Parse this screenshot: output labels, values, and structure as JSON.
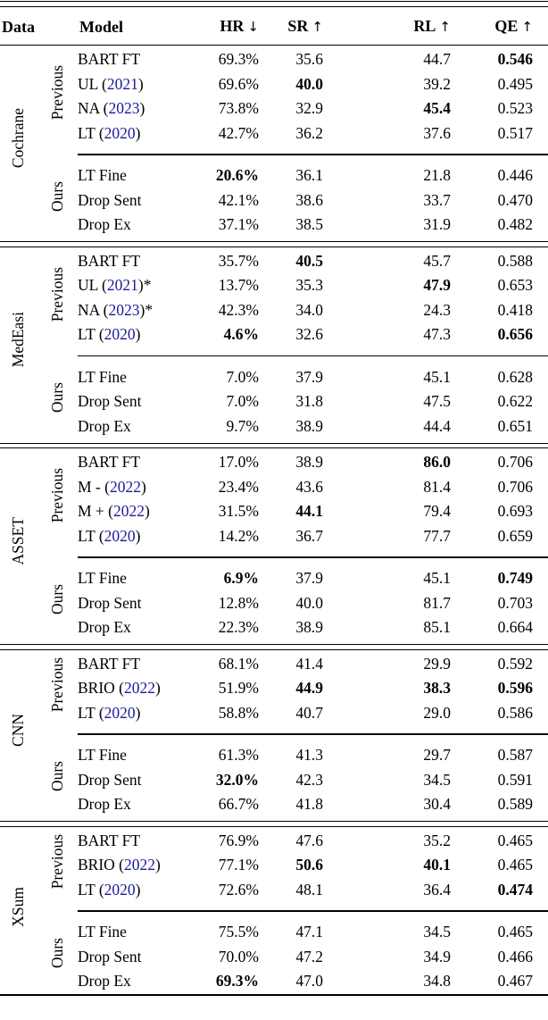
{
  "table": {
    "columns": [
      {
        "label": "Data",
        "arrow": ""
      },
      {
        "label": "Model",
        "arrow": ""
      },
      {
        "label": "HR",
        "arrow": "↓"
      },
      {
        "label": "SR",
        "arrow": "↑"
      },
      {
        "label": "RL",
        "arrow": "↑"
      },
      {
        "label": "QE",
        "arrow": "↑"
      }
    ],
    "year_link_color": "#1b1b9c",
    "blocks": [
      {
        "dataset": "Cochrane",
        "groups": [
          {
            "label": "Previous",
            "rows": [
              {
                "model": {
                  "pre": "BART FT"
                },
                "cells": [
                  {
                    "v": "69.3%"
                  },
                  {
                    "v": "35.6"
                  },
                  {
                    "v": "44.7"
                  },
                  {
                    "v": "0.546",
                    "b": true
                  }
                ]
              },
              {
                "model": {
                  "pre": "UL (",
                  "year": "2021",
                  "post": ")"
                },
                "cells": [
                  {
                    "v": "69.6%"
                  },
                  {
                    "v": "40.0",
                    "b": true
                  },
                  {
                    "v": "39.2"
                  },
                  {
                    "v": "0.495"
                  }
                ]
              },
              {
                "model": {
                  "pre": "NA (",
                  "year": "2023",
                  "post": ")"
                },
                "cells": [
                  {
                    "v": "73.8%"
                  },
                  {
                    "v": "32.9"
                  },
                  {
                    "v": "45.4",
                    "b": true
                  },
                  {
                    "v": "0.523"
                  }
                ]
              },
              {
                "model": {
                  "pre": "LT (",
                  "year": "2020",
                  "post": ")"
                },
                "cells": [
                  {
                    "v": "42.7%"
                  },
                  {
                    "v": "36.2"
                  },
                  {
                    "v": "37.6"
                  },
                  {
                    "v": "0.517"
                  }
                ]
              }
            ]
          },
          {
            "label": "Ours",
            "rows": [
              {
                "model": {
                  "pre": "LT Fine"
                },
                "cells": [
                  {
                    "v": "20.6%",
                    "b": true
                  },
                  {
                    "v": "36.1"
                  },
                  {
                    "v": "21.8"
                  },
                  {
                    "v": "0.446"
                  }
                ]
              },
              {
                "model": {
                  "pre": "Drop Sent"
                },
                "cells": [
                  {
                    "v": "42.1%"
                  },
                  {
                    "v": "38.6"
                  },
                  {
                    "v": "33.7"
                  },
                  {
                    "v": "0.470"
                  }
                ]
              },
              {
                "model": {
                  "pre": "Drop Ex"
                },
                "cells": [
                  {
                    "v": "37.1%"
                  },
                  {
                    "v": "38.5"
                  },
                  {
                    "v": "31.9"
                  },
                  {
                    "v": "0.482"
                  }
                ]
              }
            ]
          }
        ]
      },
      {
        "dataset": "MedEasi",
        "groups": [
          {
            "label": "Previous",
            "rows": [
              {
                "model": {
                  "pre": "BART FT"
                },
                "cells": [
                  {
                    "v": "35.7%"
                  },
                  {
                    "v": "40.5",
                    "b": true
                  },
                  {
                    "v": "45.7"
                  },
                  {
                    "v": "0.588"
                  }
                ]
              },
              {
                "model": {
                  "pre": "UL (",
                  "year": "2021",
                  "post": ")*"
                },
                "cells": [
                  {
                    "v": "13.7%"
                  },
                  {
                    "v": "35.3"
                  },
                  {
                    "v": "47.9",
                    "b": true
                  },
                  {
                    "v": "0.653"
                  }
                ]
              },
              {
                "model": {
                  "pre": "NA (",
                  "year": "2023",
                  "post": ")*"
                },
                "cells": [
                  {
                    "v": "42.3%"
                  },
                  {
                    "v": "34.0"
                  },
                  {
                    "v": "24.3"
                  },
                  {
                    "v": "0.418"
                  }
                ]
              },
              {
                "model": {
                  "pre": "LT (",
                  "year": "2020",
                  "post": ")"
                },
                "cells": [
                  {
                    "v": "4.6%",
                    "b": true
                  },
                  {
                    "v": "32.6"
                  },
                  {
                    "v": "47.3"
                  },
                  {
                    "v": "0.656",
                    "b": true
                  }
                ]
              }
            ]
          },
          {
            "label": "Ours",
            "rows": [
              {
                "model": {
                  "pre": "LT Fine"
                },
                "cells": [
                  {
                    "v": "7.0%"
                  },
                  {
                    "v": "37.9"
                  },
                  {
                    "v": "45.1"
                  },
                  {
                    "v": "0.628"
                  }
                ]
              },
              {
                "model": {
                  "pre": "Drop Sent"
                },
                "cells": [
                  {
                    "v": "7.0%"
                  },
                  {
                    "v": "31.8"
                  },
                  {
                    "v": "47.5"
                  },
                  {
                    "v": "0.622"
                  }
                ]
              },
              {
                "model": {
                  "pre": "Drop Ex"
                },
                "cells": [
                  {
                    "v": "9.7%"
                  },
                  {
                    "v": "38.9"
                  },
                  {
                    "v": "44.4"
                  },
                  {
                    "v": "0.651"
                  }
                ]
              }
            ]
          }
        ]
      },
      {
        "dataset": "ASSET",
        "groups": [
          {
            "label": "Previous",
            "rows": [
              {
                "model": {
                  "pre": "BART FT"
                },
                "cells": [
                  {
                    "v": "17.0%"
                  },
                  {
                    "v": "38.9"
                  },
                  {
                    "v": "86.0",
                    "b": true
                  },
                  {
                    "v": "0.706"
                  }
                ]
              },
              {
                "model": {
                  "pre": "M - (",
                  "year": "2022",
                  "post": ")"
                },
                "cells": [
                  {
                    "v": "23.4%"
                  },
                  {
                    "v": "43.6"
                  },
                  {
                    "v": "81.4"
                  },
                  {
                    "v": "0.706"
                  }
                ]
              },
              {
                "model": {
                  "pre": "M + (",
                  "year": "2022",
                  "post": ")"
                },
                "cells": [
                  {
                    "v": "31.5%"
                  },
                  {
                    "v": "44.1",
                    "b": true
                  },
                  {
                    "v": "79.4"
                  },
                  {
                    "v": "0.693"
                  }
                ]
              },
              {
                "model": {
                  "pre": "LT (",
                  "year": "2020",
                  "post": ")"
                },
                "cells": [
                  {
                    "v": "14.2%"
                  },
                  {
                    "v": "36.7"
                  },
                  {
                    "v": "77.7"
                  },
                  {
                    "v": "0.659"
                  }
                ]
              }
            ]
          },
          {
            "label": "Ours",
            "rows": [
              {
                "model": {
                  "pre": "LT Fine"
                },
                "cells": [
                  {
                    "v": "6.9%",
                    "b": true
                  },
                  {
                    "v": "37.9"
                  },
                  {
                    "v": "45.1"
                  },
                  {
                    "v": "0.749",
                    "b": true
                  }
                ]
              },
              {
                "model": {
                  "pre": "Drop Sent"
                },
                "cells": [
                  {
                    "v": "12.8%"
                  },
                  {
                    "v": "40.0"
                  },
                  {
                    "v": "81.7"
                  },
                  {
                    "v": "0.703"
                  }
                ]
              },
              {
                "model": {
                  "pre": "Drop Ex"
                },
                "cells": [
                  {
                    "v": "22.3%"
                  },
                  {
                    "v": "38.9"
                  },
                  {
                    "v": "85.1"
                  },
                  {
                    "v": "0.664"
                  }
                ]
              }
            ]
          }
        ]
      },
      {
        "dataset": "CNN",
        "groups": [
          {
            "label": "Previous",
            "rows": [
              {
                "model": {
                  "pre": "BART FT"
                },
                "cells": [
                  {
                    "v": "68.1%"
                  },
                  {
                    "v": "41.4"
                  },
                  {
                    "v": "29.9"
                  },
                  {
                    "v": "0.592"
                  }
                ]
              },
              {
                "model": {
                  "pre": "BRIO (",
                  "year": "2022",
                  "post": ")"
                },
                "cells": [
                  {
                    "v": "51.9%"
                  },
                  {
                    "v": "44.9",
                    "b": true
                  },
                  {
                    "v": "38.3",
                    "b": true
                  },
                  {
                    "v": "0.596",
                    "b": true
                  }
                ]
              },
              {
                "model": {
                  "pre": "LT (",
                  "year": "2020",
                  "post": ")"
                },
                "cells": [
                  {
                    "v": "58.8%"
                  },
                  {
                    "v": "40.7"
                  },
                  {
                    "v": "29.0"
                  },
                  {
                    "v": "0.586"
                  }
                ]
              }
            ]
          },
          {
            "label": "Ours",
            "rows": [
              {
                "model": {
                  "pre": "LT Fine"
                },
                "cells": [
                  {
                    "v": "61.3%"
                  },
                  {
                    "v": "41.3"
                  },
                  {
                    "v": "29.7"
                  },
                  {
                    "v": "0.587"
                  }
                ]
              },
              {
                "model": {
                  "pre": "Drop Sent"
                },
                "cells": [
                  {
                    "v": "32.0%",
                    "b": true
                  },
                  {
                    "v": "42.3"
                  },
                  {
                    "v": "34.5"
                  },
                  {
                    "v": "0.591"
                  }
                ]
              },
              {
                "model": {
                  "pre": "Drop Ex"
                },
                "cells": [
                  {
                    "v": "66.7%"
                  },
                  {
                    "v": "41.8"
                  },
                  {
                    "v": "30.4"
                  },
                  {
                    "v": "0.589"
                  }
                ]
              }
            ]
          }
        ]
      },
      {
        "dataset": "XSum",
        "groups": [
          {
            "label": "Previous",
            "rows": [
              {
                "model": {
                  "pre": "BART FT"
                },
                "cells": [
                  {
                    "v": "76.9%"
                  },
                  {
                    "v": "47.6"
                  },
                  {
                    "v": "35.2"
                  },
                  {
                    "v": "0.465"
                  }
                ]
              },
              {
                "model": {
                  "pre": "BRIO (",
                  "year": "2022",
                  "post": ")"
                },
                "cells": [
                  {
                    "v": "77.1%"
                  },
                  {
                    "v": "50.6",
                    "b": true
                  },
                  {
                    "v": "40.1",
                    "b": true
                  },
                  {
                    "v": "0.465"
                  }
                ]
              },
              {
                "model": {
                  "pre": "LT (",
                  "year": "2020",
                  "post": ")"
                },
                "cells": [
                  {
                    "v": "72.6%"
                  },
                  {
                    "v": "48.1"
                  },
                  {
                    "v": "36.4"
                  },
                  {
                    "v": "0.474",
                    "b": true
                  }
                ]
              }
            ]
          },
          {
            "label": "Ours",
            "rows": [
              {
                "model": {
                  "pre": "LT Fine"
                },
                "cells": [
                  {
                    "v": "75.5%"
                  },
                  {
                    "v": "47.1"
                  },
                  {
                    "v": "34.5"
                  },
                  {
                    "v": "0.465"
                  }
                ]
              },
              {
                "model": {
                  "pre": "Drop Sent"
                },
                "cells": [
                  {
                    "v": "70.0%"
                  },
                  {
                    "v": "47.2"
                  },
                  {
                    "v": "34.9"
                  },
                  {
                    "v": "0.466"
                  }
                ]
              },
              {
                "model": {
                  "pre": "Drop Ex"
                },
                "cells": [
                  {
                    "v": "69.3%",
                    "b": true
                  },
                  {
                    "v": "47.0"
                  },
                  {
                    "v": "34.8"
                  },
                  {
                    "v": "0.467"
                  }
                ]
              }
            ]
          }
        ]
      }
    ]
  }
}
